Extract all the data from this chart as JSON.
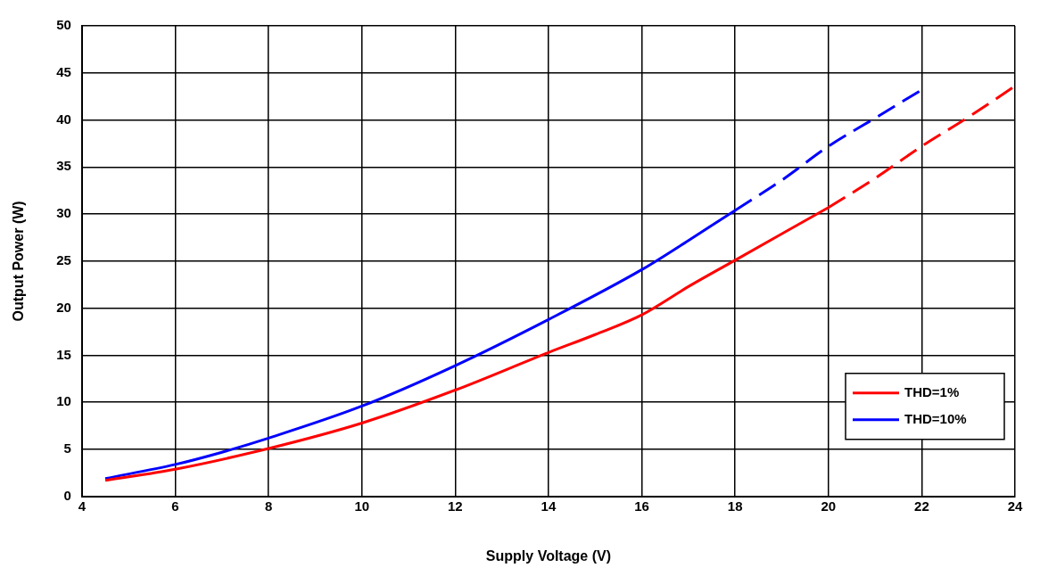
{
  "chart_data": {
    "type": "line",
    "xlabel": "Supply Voltage (V)",
    "ylabel": "Output Power (W)",
    "xlim": [
      4,
      24
    ],
    "xticks": [
      4,
      6,
      8,
      10,
      12,
      14,
      16,
      18,
      20,
      22,
      24
    ],
    "ylim": [
      0,
      50
    ],
    "yticks": [
      0,
      5,
      10,
      15,
      20,
      25,
      30,
      35,
      40,
      45,
      50
    ],
    "grid": true,
    "legend": "bottom right",
    "marker": "none",
    "series": [
      {
        "name": "THD=1%",
        "color": "#ff0000",
        "line_style": "solid",
        "x": [
          4.5,
          6,
          8,
          10,
          12,
          14,
          15,
          16,
          17,
          18,
          19,
          20
        ],
        "values": [
          1.7,
          2.9,
          5.1,
          7.8,
          11.3,
          15.3,
          17.2,
          19.3,
          22.3,
          25.1,
          27.9,
          30.7
        ]
      },
      {
        "name": "THD=10%",
        "color": "#0000ff",
        "line_style": "solid",
        "x": [
          4.5,
          6,
          7,
          8,
          10,
          12,
          14,
          16,
          17,
          18
        ],
        "values": [
          1.9,
          3.4,
          4.7,
          6.2,
          9.6,
          13.9,
          18.8,
          24.1,
          27.2,
          30.4
        ]
      },
      {
        "color": "#ff0000",
        "line_style": "dashed",
        "x": [
          20,
          21,
          22,
          23,
          24
        ],
        "values": [
          30.7,
          33.8,
          37.2,
          40.3,
          43.6
        ]
      },
      {
        "color": "#0000ff",
        "line_style": "dashed",
        "x": [
          18,
          19,
          20,
          21,
          22
        ],
        "values": [
          30.4,
          33.6,
          37.2,
          40.2,
          43.2
        ]
      }
    ]
  }
}
